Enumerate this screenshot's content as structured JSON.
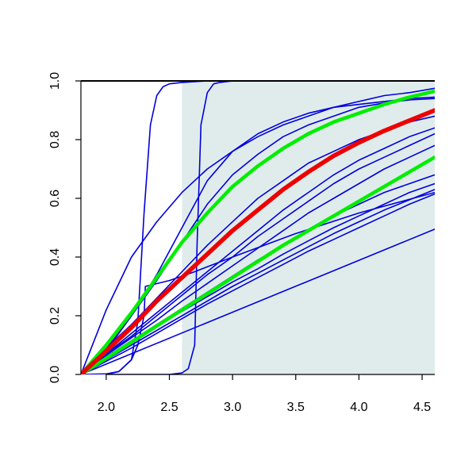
{
  "chart_data": {
    "type": "line",
    "title": "",
    "xlabel": "",
    "ylabel": "",
    "xlim": [
      1.8,
      4.6
    ],
    "ylim": [
      0.0,
      1.0
    ],
    "x_ticks": [
      2.0,
      2.5,
      3.0,
      3.5,
      4.0,
      4.5
    ],
    "x_tick_labels": [
      "2.0",
      "2.5",
      "3.0",
      "3.5",
      "4.0",
      "4.5"
    ],
    "y_ticks": [
      0.0,
      0.2,
      0.4,
      0.6,
      0.8,
      1.0
    ],
    "y_tick_labels": [
      "0.0",
      "0.2",
      "0.4",
      "0.6",
      "0.8",
      "1.0"
    ],
    "grid": false,
    "legend": false,
    "shaded_region": {
      "x_start": 2.6,
      "x_end": 4.6,
      "color": "#e0ecec"
    },
    "x_origin": 1.8,
    "colors": {
      "blue": "#0000dd",
      "green": "#00ee00",
      "red": "#ee0000",
      "axis": "#000000"
    },
    "series": [
      {
        "color": "blue",
        "width": 1.6,
        "x": [
          1.8,
          4.6
        ],
        "y": [
          0.0,
          0.495
        ]
      },
      {
        "color": "blue",
        "width": 1.6,
        "x": [
          1.8,
          2.0,
          2.2,
          2.4,
          2.6,
          2.8,
          3.0,
          3.2,
          3.4,
          3.6,
          3.8,
          4.0,
          4.2,
          4.4,
          4.6
        ],
        "y": [
          0.0,
          0.22,
          0.4,
          0.52,
          0.62,
          0.7,
          0.76,
          0.81,
          0.85,
          0.88,
          0.91,
          0.93,
          0.95,
          0.96,
          0.975
        ]
      },
      {
        "color": "blue",
        "width": 1.6,
        "x": [
          1.8,
          2.0,
          2.2,
          2.4,
          2.6,
          2.8,
          3.0,
          3.2,
          3.4,
          3.6,
          3.8,
          4.0,
          4.2,
          4.4,
          4.6
        ],
        "y": [
          0.0,
          0.08,
          0.2,
          0.34,
          0.5,
          0.66,
          0.76,
          0.82,
          0.86,
          0.89,
          0.91,
          0.92,
          0.93,
          0.94,
          0.945
        ]
      },
      {
        "color": "blue",
        "width": 1.6,
        "x": [
          1.8,
          2.0,
          2.2,
          2.4,
          2.6,
          2.8,
          3.0,
          3.2,
          3.4,
          3.6,
          3.8,
          4.0,
          4.2,
          4.4,
          4.6
        ],
        "y": [
          0.0,
          0.09,
          0.2,
          0.32,
          0.45,
          0.58,
          0.68,
          0.75,
          0.81,
          0.85,
          0.88,
          0.91,
          0.925,
          0.935,
          0.94
        ]
      },
      {
        "color": "blue",
        "width": 1.6,
        "x": [
          1.8,
          2.0,
          2.2,
          2.4,
          2.6,
          2.8,
          3.0,
          3.2,
          3.4,
          3.6,
          3.8,
          4.0,
          4.2,
          4.4,
          4.6
        ],
        "y": [
          0.0,
          0.09,
          0.17,
          0.26,
          0.35,
          0.44,
          0.52,
          0.6,
          0.66,
          0.72,
          0.76,
          0.8,
          0.83,
          0.86,
          0.88
        ]
      },
      {
        "color": "blue",
        "width": 1.6,
        "x": [
          1.8,
          2.0,
          2.2,
          2.4,
          2.6,
          2.8,
          3.0,
          3.2,
          3.4,
          3.6,
          3.8,
          4.0,
          4.2,
          4.4,
          4.6
        ],
        "y": [
          0.0,
          0.07,
          0.14,
          0.21,
          0.28,
          0.35,
          0.42,
          0.49,
          0.56,
          0.62,
          0.68,
          0.73,
          0.77,
          0.81,
          0.84
        ]
      },
      {
        "color": "blue",
        "width": 1.6,
        "x": [
          1.8,
          2.0,
          2.2,
          2.4,
          2.6,
          2.8,
          3.0,
          3.2,
          3.4,
          3.6,
          3.8,
          4.0,
          4.2,
          4.4,
          4.6
        ],
        "y": [
          0.0,
          0.07,
          0.13,
          0.2,
          0.27,
          0.34,
          0.4,
          0.47,
          0.53,
          0.59,
          0.65,
          0.7,
          0.74,
          0.78,
          0.82
        ]
      },
      {
        "color": "blue",
        "width": 1.6,
        "x": [
          1.8,
          2.0,
          2.2,
          2.4,
          2.6,
          2.8,
          3.0,
          3.2,
          3.4,
          3.6,
          3.8,
          4.0,
          4.2,
          4.4,
          4.6
        ],
        "y": [
          0.0,
          0.065,
          0.125,
          0.185,
          0.25,
          0.31,
          0.37,
          0.43,
          0.49,
          0.55,
          0.6,
          0.65,
          0.7,
          0.74,
          0.78
        ]
      },
      {
        "color": "blue",
        "width": 1.6,
        "x": [
          1.8,
          2.0,
          2.2,
          2.4,
          2.6,
          2.8,
          3.0,
          3.2,
          3.4,
          3.6,
          3.8,
          4.0,
          4.2,
          4.4,
          4.6
        ],
        "y": [
          0.0,
          0.06,
          0.115,
          0.17,
          0.225,
          0.28,
          0.335,
          0.39,
          0.44,
          0.49,
          0.54,
          0.58,
          0.62,
          0.65,
          0.68
        ]
      },
      {
        "color": "blue",
        "width": 1.6,
        "x": [
          1.8,
          2.0,
          2.2,
          2.4,
          2.6,
          2.8,
          3.0,
          3.2,
          3.4,
          3.6,
          3.8,
          4.0,
          4.2,
          4.4,
          4.6
        ],
        "y": [
          0.0,
          0.055,
          0.11,
          0.165,
          0.215,
          0.265,
          0.315,
          0.36,
          0.41,
          0.455,
          0.5,
          0.54,
          0.58,
          0.62,
          0.65
        ]
      },
      {
        "color": "blue",
        "width": 1.6,
        "x": [
          1.8,
          2.0,
          2.2,
          2.4,
          2.6,
          2.8,
          3.0,
          3.2,
          3.4,
          3.6,
          3.8,
          4.0,
          4.2,
          4.4,
          4.6
        ],
        "y": [
          0.0,
          0.05,
          0.1,
          0.15,
          0.2,
          0.25,
          0.3,
          0.345,
          0.39,
          0.435,
          0.48,
          0.52,
          0.56,
          0.595,
          0.63
        ]
      },
      {
        "color": "blue",
        "width": 1.6,
        "x": [
          1.8,
          2.0,
          2.2,
          2.4,
          2.6,
          2.8,
          3.0,
          3.2,
          3.4,
          3.6,
          3.8,
          4.0,
          4.2,
          4.4,
          4.6
        ],
        "y": [
          0.0,
          0.045,
          0.09,
          0.14,
          0.19,
          0.24,
          0.285,
          0.33,
          0.375,
          0.42,
          0.46,
          0.5,
          0.54,
          0.58,
          0.615
        ]
      },
      {
        "color": "blue",
        "width": 1.6,
        "x": [
          1.8,
          2.0,
          2.1,
          2.2,
          2.25,
          2.3,
          2.35,
          2.4,
          2.45,
          2.5,
          2.6,
          2.8,
          3.0,
          4.6
        ],
        "y": [
          0.0,
          0.002,
          0.01,
          0.05,
          0.18,
          0.55,
          0.85,
          0.95,
          0.98,
          0.99,
          0.995,
          1.0,
          1.0,
          1.0
        ]
      },
      {
        "color": "blue",
        "width": 1.6,
        "x": [
          1.8,
          2.5,
          2.6,
          2.65,
          2.7,
          2.72,
          2.75,
          2.8,
          2.85,
          2.9,
          3.0,
          4.6
        ],
        "y": [
          0.0,
          0.0,
          0.005,
          0.02,
          0.1,
          0.45,
          0.85,
          0.96,
          0.99,
          0.995,
          1.0,
          1.0
        ]
      },
      {
        "color": "blue",
        "width": 1.6,
        "x": [
          1.8,
          2.0,
          2.1,
          2.2,
          2.25,
          2.3,
          2.31,
          2.5,
          2.7,
          3.0,
          3.5,
          4.0,
          4.6
        ],
        "y": [
          0.0,
          0.0,
          0.01,
          0.05,
          0.1,
          0.2,
          0.3,
          0.32,
          0.35,
          0.4,
          0.48,
          0.55,
          0.62
        ]
      },
      {
        "color": "green",
        "width": 4.5,
        "x": [
          1.8,
          2.0,
          2.2,
          2.4,
          2.6,
          2.8,
          3.0,
          3.2,
          3.4,
          3.6,
          3.8,
          4.0,
          4.2,
          4.4,
          4.6
        ],
        "y": [
          0.0,
          0.1,
          0.21,
          0.33,
          0.45,
          0.55,
          0.64,
          0.71,
          0.77,
          0.82,
          0.86,
          0.89,
          0.92,
          0.945,
          0.965
        ]
      },
      {
        "color": "green",
        "width": 4.5,
        "x": [
          1.8,
          2.0,
          2.2,
          2.4,
          2.6,
          2.8,
          3.0,
          3.2,
          3.4,
          3.6,
          3.8,
          4.0,
          4.2,
          4.4,
          4.6
        ],
        "y": [
          0.0,
          0.055,
          0.11,
          0.165,
          0.22,
          0.275,
          0.33,
          0.385,
          0.44,
          0.49,
          0.54,
          0.59,
          0.64,
          0.69,
          0.74
        ]
      },
      {
        "color": "red",
        "width": 5.5,
        "x": [
          1.8,
          2.0,
          2.2,
          2.4,
          2.6,
          2.8,
          3.0,
          3.2,
          3.4,
          3.6,
          3.8,
          4.0,
          4.2,
          4.4,
          4.6
        ],
        "y": [
          0.0,
          0.08,
          0.16,
          0.25,
          0.33,
          0.41,
          0.49,
          0.56,
          0.63,
          0.69,
          0.745,
          0.79,
          0.83,
          0.865,
          0.9
        ]
      }
    ]
  }
}
